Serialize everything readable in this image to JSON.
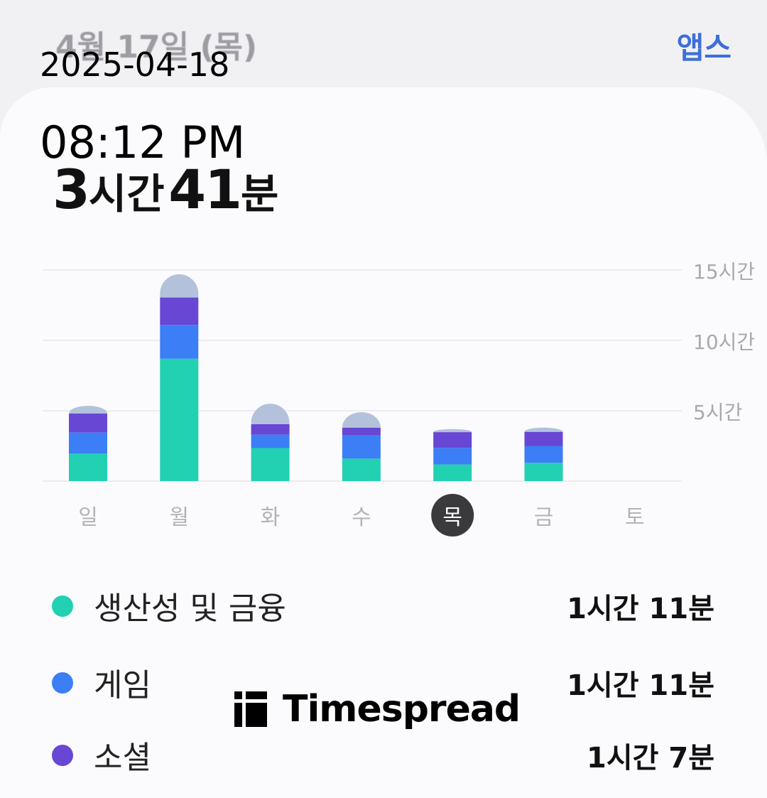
{
  "header": {
    "date": "4월 17일 (목)",
    "apps_link": "앱스"
  },
  "stamp": {
    "date": "2025-04-18",
    "time": "08:12 PM"
  },
  "total": {
    "hours": "3",
    "hours_unit": "시간",
    "minutes": "41",
    "minutes_unit": "분"
  },
  "colors": {
    "productivity": "#22d0b2",
    "game": "#3c7ef5",
    "social": "#6747d4",
    "other": "#b3c2da"
  },
  "chart_data": {
    "type": "bar",
    "stacked": true,
    "categories": [
      "일",
      "월",
      "화",
      "수",
      "목",
      "금",
      "토"
    ],
    "selected_category": "목",
    "y_ticks": [
      "5시간",
      "10시간",
      "15시간"
    ],
    "ylim": [
      0,
      15
    ],
    "series": [
      {
        "name": "생산성 및 금융",
        "color": "#22d0b2",
        "values": [
          1.95,
          8.7,
          2.35,
          1.6,
          1.18,
          1.3,
          0
        ]
      },
      {
        "name": "게임",
        "color": "#3c7ef5",
        "values": [
          1.5,
          2.4,
          0.95,
          1.65,
          1.18,
          1.2,
          0
        ]
      },
      {
        "name": "소셜",
        "color": "#6747d4",
        "values": [
          1.35,
          1.95,
          0.75,
          0.55,
          1.12,
          1.0,
          0
        ]
      },
      {
        "values": [
          0.55,
          1.65,
          1.45,
          1.1,
          0.22,
          0.3,
          0
        ]
      }
    ]
  },
  "legend": [
    {
      "label": "생산성 및 금융",
      "value": "1시간 11분",
      "color": "#22d0b2"
    },
    {
      "label": "게임",
      "value": "1시간 11분",
      "color": "#3c7ef5"
    },
    {
      "label": "소셜",
      "value": "1시간 7분",
      "color": "#6747d4"
    }
  ],
  "watermark": {
    "text": "Timespread"
  }
}
